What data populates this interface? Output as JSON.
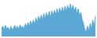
{
  "chart_data": {
    "type": "area",
    "values": [
      22,
      28,
      18,
      30,
      20,
      25,
      15,
      28,
      18,
      22,
      30,
      20,
      28,
      18,
      32,
      22,
      28,
      20,
      35,
      25,
      38,
      28,
      42,
      30,
      45,
      32,
      50,
      38,
      55,
      42,
      58,
      45,
      62,
      48,
      65,
      50,
      68,
      52,
      70,
      55,
      72,
      58,
      75,
      60,
      78,
      62,
      80,
      65,
      82,
      68,
      85,
      70,
      88,
      72,
      85,
      68,
      80,
      62,
      75,
      55,
      65,
      45,
      35,
      18,
      12,
      28,
      15,
      35,
      20,
      45,
      25,
      55
    ],
    "color": "#5ba8d4",
    "xlim": [
      0,
      71
    ],
    "ylim": [
      0,
      95.04
    ],
    "grid": false,
    "tick_labels": false
  }
}
